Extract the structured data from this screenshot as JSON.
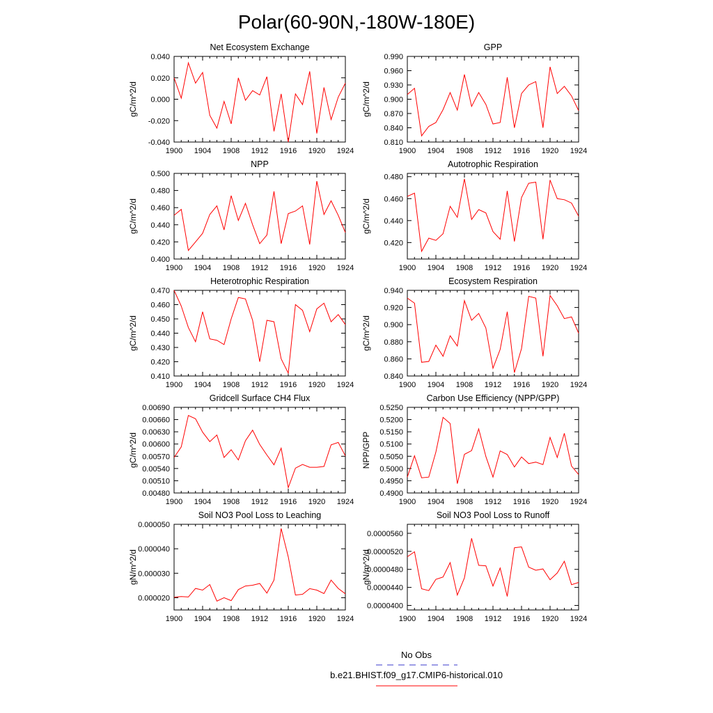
{
  "title": "Polar(60-90N,-180W-180E)",
  "legend": {
    "obs_label": "No Obs",
    "obs_color": "#3a3acc",
    "model_label": "b.e21.BHIST.f09_g17.CMIP6-historical.010",
    "model_color": "#ff0000"
  },
  "chart_data": [
    {
      "type": "line",
      "title": "Net Ecosystem Exchange",
      "ylabel": "gC/m^2/d",
      "ylim": [
        -0.04,
        0.04
      ],
      "yticks": [
        -0.04,
        -0.02,
        0.0,
        0.02,
        0.04
      ],
      "ytick_labels": [
        "-0.040",
        "-0.020",
        "0.000",
        "0.020",
        "0.040"
      ],
      "xlim": [
        1900,
        1924
      ],
      "xticks": [
        1900,
        1904,
        1908,
        1912,
        1916,
        1920,
        1924
      ],
      "x": [
        1900,
        1901,
        1902,
        1903,
        1904,
        1905,
        1906,
        1907,
        1908,
        1909,
        1910,
        1911,
        1912,
        1913,
        1914,
        1915,
        1916,
        1917,
        1918,
        1919,
        1920,
        1921,
        1922,
        1923,
        1924
      ],
      "series": [
        {
          "values": [
            0.02,
            0.001,
            0.034,
            0.015,
            0.025,
            -0.015,
            -0.027,
            -0.002,
            -0.023,
            0.02,
            -0.001,
            0.008,
            0.004,
            0.021,
            -0.03,
            0.005,
            -0.04,
            0.005,
            -0.005,
            0.026,
            -0.032,
            0.011,
            -0.019,
            0.002,
            0.015
          ]
        }
      ]
    },
    {
      "type": "line",
      "title": "GPP",
      "ylabel": "gC/m^2/d",
      "ylim": [
        0.81,
        0.99
      ],
      "yticks": [
        0.81,
        0.84,
        0.87,
        0.9,
        0.93,
        0.96,
        0.99
      ],
      "ytick_labels": [
        "0.810",
        "0.840",
        "0.870",
        "0.900",
        "0.930",
        "0.960",
        "0.990"
      ],
      "xlim": [
        1900,
        1924
      ],
      "xticks": [
        1900,
        1904,
        1908,
        1912,
        1916,
        1920,
        1924
      ],
      "x": [
        1900,
        1901,
        1902,
        1903,
        1904,
        1905,
        1906,
        1907,
        1908,
        1909,
        1910,
        1911,
        1912,
        1913,
        1914,
        1915,
        1916,
        1917,
        1918,
        1919,
        1920,
        1921,
        1922,
        1923,
        1924
      ],
      "series": [
        {
          "values": [
            0.91,
            0.923,
            0.823,
            0.843,
            0.851,
            0.878,
            0.914,
            0.877,
            0.952,
            0.885,
            0.914,
            0.889,
            0.848,
            0.851,
            0.946,
            0.84,
            0.912,
            0.93,
            0.937,
            0.84,
            0.968,
            0.912,
            0.927,
            0.907,
            0.876
          ]
        }
      ]
    },
    {
      "type": "line",
      "title": "NPP",
      "ylabel": "gC/m^2/d",
      "ylim": [
        0.4,
        0.5
      ],
      "yticks": [
        0.4,
        0.42,
        0.44,
        0.46,
        0.48,
        0.5
      ],
      "ytick_labels": [
        "0.400",
        "0.420",
        "0.440",
        "0.460",
        "0.480",
        "0.500"
      ],
      "xlim": [
        1900,
        1924
      ],
      "xticks": [
        1900,
        1904,
        1908,
        1912,
        1916,
        1920,
        1924
      ],
      "x": [
        1900,
        1901,
        1902,
        1903,
        1904,
        1905,
        1906,
        1907,
        1908,
        1909,
        1910,
        1911,
        1912,
        1913,
        1914,
        1915,
        1916,
        1917,
        1918,
        1919,
        1920,
        1921,
        1922,
        1923,
        1924
      ],
      "series": [
        {
          "values": [
            0.451,
            0.458,
            0.41,
            0.42,
            0.43,
            0.452,
            0.462,
            0.434,
            0.474,
            0.445,
            0.465,
            0.44,
            0.418,
            0.428,
            0.479,
            0.418,
            0.453,
            0.456,
            0.462,
            0.417,
            0.491,
            0.452,
            0.468,
            0.451,
            0.431
          ]
        }
      ]
    },
    {
      "type": "line",
      "title": "Autotrophic Respiration",
      "ylabel": "gC/m^2/d",
      "ylim": [
        0.405,
        0.483
      ],
      "yticks": [
        0.42,
        0.44,
        0.46,
        0.48
      ],
      "ytick_labels": [
        "0.420",
        "0.440",
        "0.460",
        "0.480"
      ],
      "xlim": [
        1900,
        1924
      ],
      "xticks": [
        1900,
        1904,
        1908,
        1912,
        1916,
        1920,
        1924
      ],
      "x": [
        1900,
        1901,
        1902,
        1903,
        1904,
        1905,
        1906,
        1907,
        1908,
        1909,
        1910,
        1911,
        1912,
        1913,
        1914,
        1915,
        1916,
        1917,
        1918,
        1919,
        1920,
        1921,
        1922,
        1923,
        1924
      ],
      "series": [
        {
          "values": [
            0.462,
            0.465,
            0.412,
            0.424,
            0.422,
            0.428,
            0.453,
            0.443,
            0.478,
            0.441,
            0.45,
            0.447,
            0.43,
            0.423,
            0.467,
            0.421,
            0.461,
            0.474,
            0.475,
            0.423,
            0.477,
            0.46,
            0.459,
            0.456,
            0.444
          ]
        }
      ]
    },
    {
      "type": "line",
      "title": "Heterotrophic Respiration",
      "ylabel": "gC/m^2/d",
      "ylim": [
        0.41,
        0.47
      ],
      "yticks": [
        0.41,
        0.42,
        0.43,
        0.44,
        0.45,
        0.46,
        0.47
      ],
      "ytick_labels": [
        "0.410",
        "0.420",
        "0.430",
        "0.440",
        "0.450",
        "0.460",
        "0.470"
      ],
      "xlim": [
        1900,
        1924
      ],
      "xticks": [
        1900,
        1904,
        1908,
        1912,
        1916,
        1920,
        1924
      ],
      "x": [
        1900,
        1901,
        1902,
        1903,
        1904,
        1905,
        1906,
        1907,
        1908,
        1909,
        1910,
        1911,
        1912,
        1913,
        1914,
        1915,
        1916,
        1917,
        1918,
        1919,
        1920,
        1921,
        1922,
        1923,
        1924
      ],
      "series": [
        {
          "values": [
            0.47,
            0.459,
            0.444,
            0.434,
            0.455,
            0.436,
            0.435,
            0.432,
            0.45,
            0.465,
            0.464,
            0.449,
            0.42,
            0.449,
            0.448,
            0.422,
            0.412,
            0.46,
            0.456,
            0.441,
            0.457,
            0.461,
            0.448,
            0.453,
            0.446
          ]
        }
      ]
    },
    {
      "type": "line",
      "title": "Ecosystem Respiration",
      "ylabel": "gC/m^2/d",
      "ylim": [
        0.84,
        0.94
      ],
      "yticks": [
        0.84,
        0.86,
        0.88,
        0.9,
        0.92,
        0.94
      ],
      "ytick_labels": [
        "0.840",
        "0.860",
        "0.880",
        "0.900",
        "0.920",
        "0.940"
      ],
      "xlim": [
        1900,
        1924
      ],
      "xticks": [
        1900,
        1904,
        1908,
        1912,
        1916,
        1920,
        1924
      ],
      "x": [
        1900,
        1901,
        1902,
        1903,
        1904,
        1905,
        1906,
        1907,
        1908,
        1909,
        1910,
        1911,
        1912,
        1913,
        1914,
        1915,
        1916,
        1917,
        1918,
        1919,
        1920,
        1921,
        1922,
        1923,
        1924
      ],
      "series": [
        {
          "values": [
            0.931,
            0.925,
            0.856,
            0.857,
            0.876,
            0.863,
            0.887,
            0.875,
            0.928,
            0.905,
            0.913,
            0.896,
            0.849,
            0.871,
            0.915,
            0.844,
            0.872,
            0.933,
            0.931,
            0.863,
            0.934,
            0.922,
            0.907,
            0.909,
            0.89
          ]
        }
      ]
    },
    {
      "type": "line",
      "title": "Gridcell Surface CH4 Flux",
      "ylabel": "gC/m^2/d",
      "ylim": [
        0.0048,
        0.0069
      ],
      "yticks": [
        0.0048,
        0.0051,
        0.0054,
        0.0057,
        0.006,
        0.0063,
        0.0066,
        0.0069
      ],
      "ytick_labels": [
        "0.00480",
        "0.00510",
        "0.00540",
        "0.00570",
        "0.00600",
        "0.00630",
        "0.00660",
        "0.00690"
      ],
      "xlim": [
        1900,
        1924
      ],
      "xticks": [
        1900,
        1904,
        1908,
        1912,
        1916,
        1920,
        1924
      ],
      "x": [
        1900,
        1901,
        1902,
        1903,
        1904,
        1905,
        1906,
        1907,
        1908,
        1909,
        1910,
        1911,
        1912,
        1913,
        1914,
        1915,
        1916,
        1917,
        1918,
        1919,
        1920,
        1921,
        1922,
        1923,
        1924
      ],
      "series": [
        {
          "values": [
            0.00567,
            0.00593,
            0.0067,
            0.00662,
            0.00629,
            0.00606,
            0.00622,
            0.00567,
            0.00586,
            0.00561,
            0.00608,
            0.00634,
            0.00599,
            0.00573,
            0.00549,
            0.0059,
            0.00493,
            0.00541,
            0.0055,
            0.00543,
            0.00543,
            0.00545,
            0.00598,
            0.00604,
            0.00571
          ]
        }
      ]
    },
    {
      "type": "line",
      "title": "Carbon Use Efficiency (NPP/GPP)",
      "ylabel": "NPP/GPP",
      "ylim": [
        0.49,
        0.525
      ],
      "yticks": [
        0.49,
        0.495,
        0.5,
        0.505,
        0.51,
        0.515,
        0.52,
        0.525
      ],
      "ytick_labels": [
        "0.4900",
        "0.4950",
        "0.5000",
        "0.5050",
        "0.5100",
        "0.5150",
        "0.5200",
        "0.5250"
      ],
      "xlim": [
        1900,
        1924
      ],
      "xticks": [
        1900,
        1904,
        1908,
        1912,
        1916,
        1920,
        1924
      ],
      "x": [
        1900,
        1901,
        1902,
        1903,
        1904,
        1905,
        1906,
        1907,
        1908,
        1909,
        1910,
        1911,
        1912,
        1913,
        1914,
        1915,
        1916,
        1917,
        1918,
        1919,
        1920,
        1921,
        1922,
        1923,
        1924
      ],
      "series": [
        {
          "values": [
            0.4965,
            0.5052,
            0.4962,
            0.4965,
            0.5067,
            0.5209,
            0.5184,
            0.4938,
            0.5058,
            0.5073,
            0.5162,
            0.5049,
            0.4965,
            0.5072,
            0.5057,
            0.5006,
            0.5047,
            0.502,
            0.5026,
            0.5016,
            0.5127,
            0.5045,
            0.5144,
            0.501,
            0.4975
          ]
        }
      ]
    },
    {
      "type": "line",
      "title": "Soil NO3 Pool Loss to Leaching",
      "ylabel": "gN/m^2/d",
      "ylim": [
        1.5e-05,
        5e-05
      ],
      "yticks": [
        2e-05,
        3e-05,
        4e-05,
        5e-05
      ],
      "ytick_labels": [
        "0.000020",
        "0.000030",
        "0.000040",
        "0.000050"
      ],
      "xlim": [
        1900,
        1924
      ],
      "xticks": [
        1900,
        1904,
        1908,
        1912,
        1916,
        1920,
        1924
      ],
      "x": [
        1900,
        1901,
        1902,
        1903,
        1904,
        1905,
        1906,
        1907,
        1908,
        1909,
        1910,
        1911,
        1912,
        1913,
        1914,
        1915,
        1916,
        1917,
        1918,
        1919,
        1920,
        1921,
        1922,
        1923,
        1924
      ],
      "series": [
        {
          "values": [
            2.02e-05,
            2.05e-05,
            2.03e-05,
            2.38e-05,
            2.31e-05,
            2.54e-05,
            1.86e-05,
            2e-05,
            1.88e-05,
            2.33e-05,
            2.48e-05,
            2.51e-05,
            2.58e-05,
            2.19e-05,
            2.72e-05,
            4.83e-05,
            3.67e-05,
            2.11e-05,
            2.14e-05,
            2.37e-05,
            2.31e-05,
            2.17e-05,
            2.72e-05,
            2.38e-05,
            2.16e-05
          ]
        }
      ]
    },
    {
      "type": "line",
      "title": "Soil NO3 Pool Loss to Runoff",
      "ylabel": "gN/m^2/d",
      "ylim": [
        3.9e-05,
        5.8e-05
      ],
      "yticks": [
        4e-05,
        4.4e-05,
        4.8e-05,
        5.2e-05,
        5.6e-05
      ],
      "ytick_labels": [
        "0.0000400",
        "0.0000440",
        "0.0000480",
        "0.0000520",
        "0.0000560"
      ],
      "xlim": [
        1900,
        1924
      ],
      "xticks": [
        1900,
        1904,
        1908,
        1912,
        1916,
        1920,
        1924
      ],
      "x": [
        1900,
        1901,
        1902,
        1903,
        1904,
        1905,
        1906,
        1907,
        1908,
        1909,
        1910,
        1911,
        1912,
        1913,
        1914,
        1915,
        1916,
        1917,
        1918,
        1919,
        1920,
        1921,
        1922,
        1923,
        1924
      ],
      "series": [
        {
          "values": [
            5.08e-05,
            5.19e-05,
            4.37e-05,
            4.33e-05,
            4.58e-05,
            4.63e-05,
            4.95e-05,
            4.23e-05,
            4.61e-05,
            5.49e-05,
            4.89e-05,
            4.88e-05,
            4.43e-05,
            4.83e-05,
            4.2e-05,
            5.28e-05,
            5.3e-05,
            4.85e-05,
            4.78e-05,
            4.81e-05,
            4.57e-05,
            4.72e-05,
            4.98e-05,
            4.46e-05,
            4.51e-05
          ]
        }
      ]
    }
  ]
}
